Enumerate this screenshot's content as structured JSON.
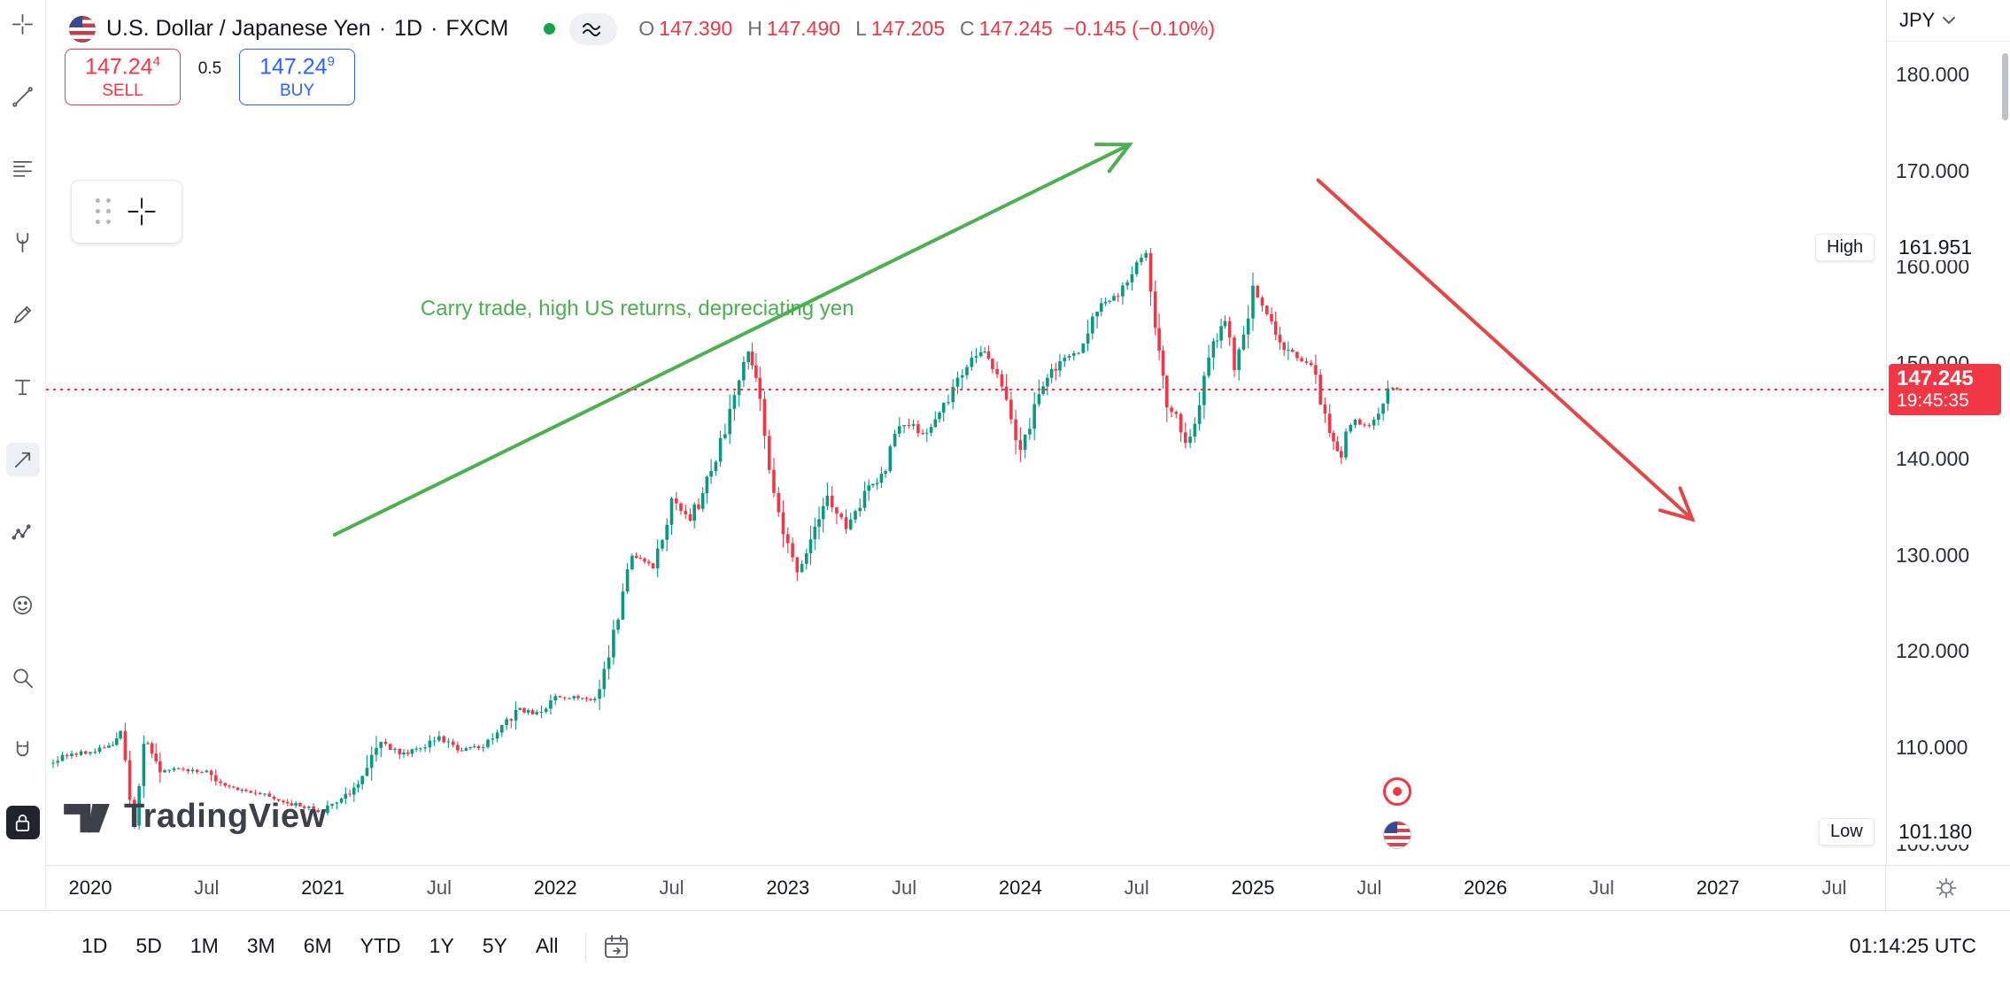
{
  "colors": {
    "up": "#089981",
    "down": "#f23645",
    "buy_blue": "#2962ff",
    "sell_red": "#f23645",
    "status_green": "#18a34b",
    "annotation_green": "#4caf50",
    "annotation_red": "#e54545",
    "axis_text": "#131722",
    "muted_text": "#787b86"
  },
  "header": {
    "symbol": "U.S. Dollar / Japanese Yen",
    "sep1": "·",
    "interval": "1D",
    "sep2": "·",
    "exchange": "FXCM",
    "ohlc": [
      {
        "label": "O",
        "value": "147.390"
      },
      {
        "label": "H",
        "value": "147.490"
      },
      {
        "label": "L",
        "value": "147.205"
      },
      {
        "label": "C",
        "value": "147.245"
      }
    ],
    "change": "−0.145 (−0.10%)"
  },
  "order_panel": {
    "sell": {
      "price_main": "147.24",
      "price_sup": "4",
      "label": "SELL"
    },
    "spread": "0.5",
    "buy": {
      "price_main": "147.24",
      "price_sup": "9",
      "label": "BUY"
    }
  },
  "toolbar": {
    "tools": [
      {
        "name": "cursor-crosshair",
        "active": false,
        "style": ""
      },
      {
        "name": "trend-line",
        "active": false,
        "style": ""
      },
      {
        "name": "fib-retracement",
        "active": false,
        "style": ""
      },
      {
        "name": "pitchfork",
        "active": false,
        "style": ""
      },
      {
        "name": "brush",
        "active": false,
        "style": ""
      },
      {
        "name": "text-tool",
        "active": false,
        "style": ""
      },
      {
        "name": "arrow-tool",
        "active": true,
        "style": "light"
      },
      {
        "name": "pattern",
        "active": false,
        "style": ""
      },
      {
        "name": "emoji",
        "active": false,
        "style": ""
      },
      {
        "name": "zoom",
        "active": false,
        "style": ""
      },
      {
        "name": "magnet",
        "active": false,
        "style": ""
      },
      {
        "name": "lock-drawings",
        "active": true,
        "style": "dark"
      }
    ]
  },
  "price_axis": {
    "currency": "JPY",
    "ticks": [
      "180.000",
      "170.000",
      "160.000",
      "150.000",
      "140.000",
      "130.000",
      "120.000",
      "110.000",
      "100.000"
    ],
    "high_label": "High",
    "high_value": "161.951",
    "low_label": "Low",
    "low_value": "101.180",
    "last_price": "147.245",
    "countdown": "19:45:35"
  },
  "time_axis": {
    "ticks": [
      {
        "t": 2020,
        "label": "2020",
        "major": true
      },
      {
        "t": 2020.5,
        "label": "Jul",
        "major": false
      },
      {
        "t": 2021,
        "label": "2021",
        "major": true
      },
      {
        "t": 2021.5,
        "label": "Jul",
        "major": false
      },
      {
        "t": 2022,
        "label": "2022",
        "major": true
      },
      {
        "t": 2022.5,
        "label": "Jul",
        "major": false
      },
      {
        "t": 2023,
        "label": "2023",
        "major": true
      },
      {
        "t": 2023.5,
        "label": "Jul",
        "major": false
      },
      {
        "t": 2024,
        "label": "2024",
        "major": true
      },
      {
        "t": 2024.5,
        "label": "Jul",
        "major": false
      },
      {
        "t": 2025,
        "label": "2025",
        "major": true
      },
      {
        "t": 2025.5,
        "label": "Jul",
        "major": false
      },
      {
        "t": 2026,
        "label": "2026",
        "major": true
      },
      {
        "t": 2026.5,
        "label": "Jul",
        "major": false
      },
      {
        "t": 2027,
        "label": "2027",
        "major": true
      },
      {
        "t": 2027.5,
        "label": "Jul",
        "major": false
      }
    ]
  },
  "bottom_toolbar": {
    "ranges": [
      "1D",
      "5D",
      "1M",
      "3M",
      "6M",
      "YTD",
      "1Y",
      "5Y",
      "All"
    ],
    "utc_time": "01:14:25 UTC"
  },
  "watermark": {
    "text": "TradingView"
  },
  "annotation": {
    "text": "Carry trade, high US returns, depreciating yen"
  },
  "chart_data": {
    "type": "candlestick",
    "symbol": "USDJPY",
    "title": "U.S. Dollar / Japanese Yen",
    "interval": "1D",
    "exchange": "FXCM",
    "up_color": "#089981",
    "down_color": "#f23645",
    "ohlc_today": {
      "open": 147.39,
      "high": 147.49,
      "low": 147.205,
      "close": 147.245,
      "change": -0.145,
      "change_pct": -0.1
    },
    "visible_high": 161.951,
    "visible_low": 101.18,
    "xlim_years": [
      2019.81,
      2027.72
    ],
    "ylim_price": [
      98,
      182
    ],
    "y_ticks": [
      100,
      110,
      120,
      130,
      140,
      150,
      160,
      170,
      180
    ],
    "x_tick_years": [
      2020,
      2021,
      2022,
      2023,
      2024,
      2025,
      2026,
      2027
    ],
    "grid": false,
    "anchors": [
      [
        2019.82,
        108.3
      ],
      [
        2019.9,
        109.2
      ],
      [
        2020.0,
        109.6
      ],
      [
        2020.08,
        110.0
      ],
      [
        2020.13,
        111.8
      ],
      [
        2020.19,
        102.0
      ],
      [
        2020.23,
        111.0
      ],
      [
        2020.3,
        107.8
      ],
      [
        2020.42,
        107.6
      ],
      [
        2020.5,
        107.5
      ],
      [
        2020.58,
        105.9
      ],
      [
        2020.67,
        105.6
      ],
      [
        2020.75,
        105.0
      ],
      [
        2020.83,
        104.4
      ],
      [
        2020.92,
        103.8
      ],
      [
        2021.0,
        103.2
      ],
      [
        2021.08,
        104.7
      ],
      [
        2021.17,
        106.6
      ],
      [
        2021.25,
        110.7
      ],
      [
        2021.33,
        109.3
      ],
      [
        2021.42,
        109.8
      ],
      [
        2021.5,
        111.1
      ],
      [
        2021.58,
        109.7
      ],
      [
        2021.67,
        110.0
      ],
      [
        2021.75,
        111.3
      ],
      [
        2021.83,
        114.0
      ],
      [
        2021.92,
        113.5
      ],
      [
        2022.0,
        115.1
      ],
      [
        2022.08,
        115.2
      ],
      [
        2022.17,
        115.0
      ],
      [
        2022.25,
        121.7
      ],
      [
        2022.33,
        129.8
      ],
      [
        2022.42,
        128.8
      ],
      [
        2022.5,
        135.7
      ],
      [
        2022.58,
        133.3
      ],
      [
        2022.67,
        138.9
      ],
      [
        2022.75,
        144.7
      ],
      [
        2022.79,
        148.8
      ],
      [
        2022.83,
        151.1
      ],
      [
        2022.88,
        146.5
      ],
      [
        2022.92,
        138.1
      ],
      [
        2023.0,
        131.1
      ],
      [
        2023.04,
        127.9
      ],
      [
        2023.08,
        130.2
      ],
      [
        2023.17,
        136.2
      ],
      [
        2023.25,
        132.9
      ],
      [
        2023.33,
        136.3
      ],
      [
        2023.42,
        139.3
      ],
      [
        2023.5,
        144.3
      ],
      [
        2023.58,
        142.3
      ],
      [
        2023.67,
        145.5
      ],
      [
        2023.75,
        149.4
      ],
      [
        2023.83,
        151.5
      ],
      [
        2023.88,
        149.5
      ],
      [
        2023.92,
        147.2
      ],
      [
        2024.0,
        141.0
      ],
      [
        2024.08,
        146.9
      ],
      [
        2024.17,
        150.0
      ],
      [
        2024.25,
        151.3
      ],
      [
        2024.33,
        155.8
      ],
      [
        2024.42,
        157.0
      ],
      [
        2024.5,
        160.8
      ],
      [
        2024.54,
        161.5
      ],
      [
        2024.58,
        153.5
      ],
      [
        2024.63,
        146.0
      ],
      [
        2024.67,
        144.5
      ],
      [
        2024.71,
        141.5
      ],
      [
        2024.75,
        143.6
      ],
      [
        2024.83,
        152.0
      ],
      [
        2024.88,
        154.5
      ],
      [
        2024.92,
        149.8
      ],
      [
        2025.0,
        157.2
      ],
      [
        2025.04,
        155.8
      ],
      [
        2025.08,
        154.0
      ],
      [
        2025.17,
        150.6
      ],
      [
        2025.25,
        149.9
      ],
      [
        2025.33,
        143.0
      ],
      [
        2025.38,
        140.5
      ],
      [
        2025.42,
        144.0
      ],
      [
        2025.5,
        143.5
      ],
      [
        2025.54,
        145.0
      ],
      [
        2025.58,
        147.4
      ],
      [
        2025.62,
        147.245
      ]
    ],
    "drawings": [
      {
        "type": "arrow",
        "name": "bullish-trend-arrow",
        "from": {
          "t": 2021.05,
          "p": 132.1
        },
        "to": {
          "t": 2024.47,
          "p": 172.7
        },
        "color": "#4caf50"
      },
      {
        "type": "arrow",
        "name": "bearish-trend-arrow",
        "from": {
          "t": 2025.28,
          "p": 169.0
        },
        "to": {
          "t": 2026.89,
          "p": 133.7
        },
        "color": "#e54545"
      },
      {
        "type": "text",
        "name": "note",
        "t": 2021.42,
        "p": 155.6,
        "text": "Carry trade, high US returns, depreciating yen",
        "color": "#4caf50"
      }
    ],
    "events": [
      {
        "t": 2025.62,
        "icon": "economic-event-red"
      },
      {
        "t": 2025.62,
        "icon": "us-flag-event"
      }
    ]
  }
}
